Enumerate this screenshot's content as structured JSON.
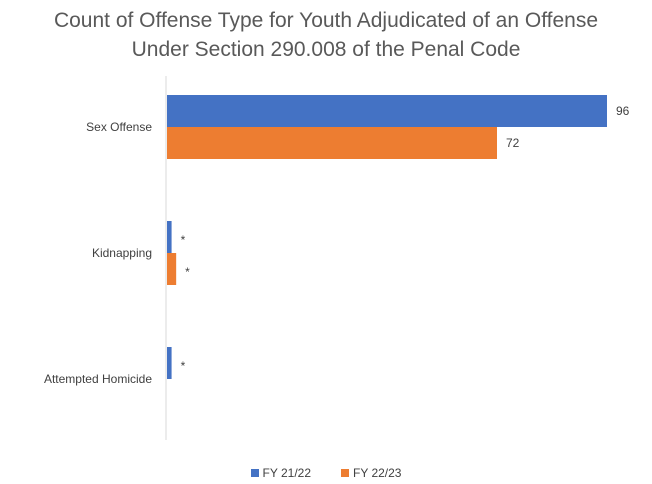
{
  "chart_data": {
    "type": "bar",
    "orientation": "horizontal",
    "title_lines": [
      "Count of Offense Type for Youth Adjudicated of an Offense",
      "Under Section 290.008 of the Penal Code"
    ],
    "categories": [
      "Sex Offense",
      "Kidnapping",
      "Attempted Homicide"
    ],
    "series": [
      {
        "name": "FY 21/22",
        "color": "#4472C4",
        "values": [
          96,
          1,
          1
        ],
        "labels": [
          "96",
          "*",
          "*"
        ]
      },
      {
        "name": "FY 22/23",
        "color": "#ED7D31",
        "values": [
          72,
          2,
          null
        ],
        "labels": [
          "72",
          "*",
          ""
        ]
      }
    ],
    "xlim": [
      0,
      96
    ],
    "grid": false,
    "legend": "bottom"
  }
}
